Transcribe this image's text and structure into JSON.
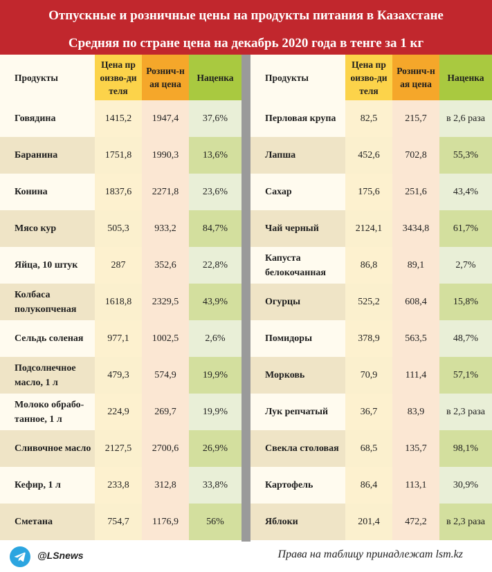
{
  "title": "Отпускные и розничные цены на продукты питания в Казахстане",
  "subtitle": "Средняя по стране цена на декабрь 2020 года в тенге за 1 кг",
  "colors": {
    "header_bg": "#c1272d",
    "producer_col": "#fcd34a",
    "retail_col": "#f5a72a",
    "markup_col": "#a9c940"
  },
  "chart_data": {
    "type": "table",
    "title": "Отпускные и розничные цены на продукты питания в Казахстане",
    "subtitle": "Средняя по стране цена на декабрь 2020 года в тенге за 1 кг",
    "columns": [
      "Продукты",
      "Цена производителя",
      "Розничная цена",
      "Наценка"
    ],
    "tables": [
      {
        "header": [
          "Продукты",
          "Цена произво-дителя",
          "Рознич-ная цена",
          "Наценка"
        ],
        "rows": [
          [
            "Говядина",
            "1415,2",
            "1947,4",
            "37,6%"
          ],
          [
            "Баранина",
            "1751,8",
            "1990,3",
            "13,6%"
          ],
          [
            "Конина",
            "1837,6",
            "2271,8",
            "23,6%"
          ],
          [
            "Мясо кур",
            "505,3",
            "933,2",
            "84,7%"
          ],
          [
            "Яйца, 10 штук",
            "287",
            "352,6",
            "22,8%"
          ],
          [
            "Колбаса полукопченая",
            "1618,8",
            "2329,5",
            "43,9%"
          ],
          [
            "Сельдь соленая",
            "977,1",
            "1002,5",
            "2,6%"
          ],
          [
            "Подсолнечное масло, 1 л",
            "479,3",
            "574,9",
            "19,9%"
          ],
          [
            "Молоко обрабо-танное, 1 л",
            "224,9",
            "269,7",
            "19,9%"
          ],
          [
            "Сливочное масло",
            "2127,5",
            "2700,6",
            "26,9%"
          ],
          [
            "Кефир, 1 л",
            "233,8",
            "312,8",
            "33,8%"
          ],
          [
            "Сметана",
            "754,7",
            "1176,9",
            "56%"
          ]
        ]
      },
      {
        "header": [
          "Продукты",
          "Цена произво-дителя",
          "Рознич-ная цена",
          "Наценка"
        ],
        "rows": [
          [
            "Перловая крупа",
            "82,5",
            "215,7",
            "в 2,6 раза"
          ],
          [
            "Лапша",
            "452,6",
            "702,8",
            "55,3%"
          ],
          [
            "Сахар",
            "175,6",
            "251,6",
            "43,4%"
          ],
          [
            "Чай черный",
            "2124,1",
            "3434,8",
            "61,7%"
          ],
          [
            "Капуста белокочанная",
            "86,8",
            "89,1",
            "2,7%"
          ],
          [
            "Огурцы",
            "525,2",
            "608,4",
            "15,8%"
          ],
          [
            "Помидоры",
            "378,9",
            "563,5",
            "48,7%"
          ],
          [
            "Морковь",
            "70,9",
            "111,4",
            "57,1%"
          ],
          [
            "Лук репчатый",
            "36,7",
            "83,9",
            "в 2,3 раза"
          ],
          [
            "Свекла столовая",
            "68,5",
            "135,7",
            "98,1%"
          ],
          [
            "Картофель",
            "86,4",
            "113,1",
            "30,9%"
          ],
          [
            "Яблоки",
            "201,4",
            "472,2",
            "в 2,3 раза"
          ]
        ]
      }
    ]
  },
  "footer": {
    "icon": "telegram-icon",
    "handle": "@LSnews",
    "credit": "Права на таблицу принадлежат lsm.kz"
  }
}
